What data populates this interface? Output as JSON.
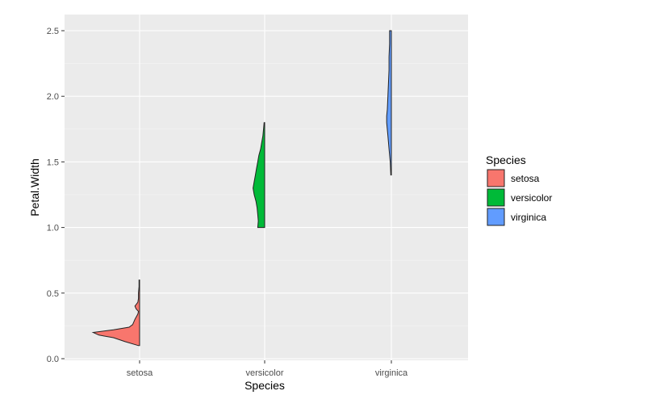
{
  "chart_data": {
    "type": "half-violin",
    "xlabel": "Species",
    "ylabel": "Petal.Width",
    "categories": [
      "setosa",
      "versicolor",
      "virginica"
    ],
    "ylim": [
      0,
      2.6
    ],
    "yticks": [
      0.0,
      0.5,
      1.0,
      1.5,
      2.0,
      2.5
    ],
    "ytick_labels": [
      "0.0",
      "0.5",
      "1.0",
      "1.5",
      "2.0",
      "2.5"
    ],
    "grid": true,
    "legend": {
      "title": "Species",
      "position": "right",
      "entries": [
        "setosa",
        "versicolor",
        "virginica"
      ]
    },
    "colors": {
      "setosa": "#F8766D",
      "versicolor": "#00BA38",
      "virginica": "#619CFF",
      "panel": "#EBEBEB",
      "grid": "#FFFFFF"
    },
    "series": [
      {
        "category": "setosa",
        "y": [
          0.1,
          0.13,
          0.16,
          0.18,
          0.2,
          0.22,
          0.24,
          0.26,
          0.3,
          0.34,
          0.36,
          0.38,
          0.4,
          0.43,
          0.46,
          0.5,
          0.55,
          0.6
        ],
        "width": [
          0.02,
          0.25,
          0.45,
          0.7,
          0.8,
          0.45,
          0.18,
          0.12,
          0.08,
          0.03,
          0.02,
          0.06,
          0.08,
          0.03,
          0.02,
          0.02,
          0.01,
          0.01
        ]
      },
      {
        "category": "versicolor",
        "y": [
          1.0,
          1.05,
          1.1,
          1.15,
          1.2,
          1.25,
          1.3,
          1.35,
          1.4,
          1.45,
          1.5,
          1.55,
          1.6,
          1.65,
          1.7,
          1.75,
          1.8
        ],
        "width": [
          0.12,
          0.11,
          0.12,
          0.13,
          0.15,
          0.18,
          0.2,
          0.18,
          0.16,
          0.14,
          0.12,
          0.1,
          0.07,
          0.05,
          0.03,
          0.02,
          0.01
        ]
      },
      {
        "category": "virginica",
        "y": [
          1.4,
          1.5,
          1.6,
          1.7,
          1.8,
          1.85,
          1.9,
          2.0,
          2.1,
          2.2,
          2.3,
          2.4,
          2.5
        ],
        "width": [
          0.01,
          0.02,
          0.04,
          0.06,
          0.08,
          0.08,
          0.07,
          0.06,
          0.05,
          0.04,
          0.04,
          0.03,
          0.03
        ]
      }
    ]
  }
}
